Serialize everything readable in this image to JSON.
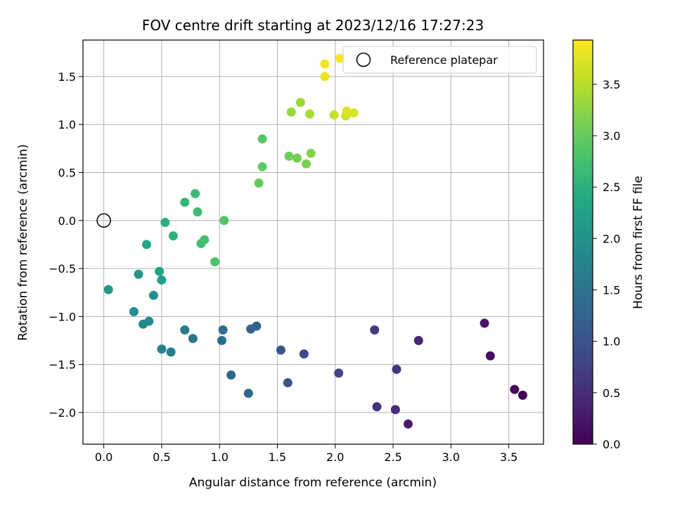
{
  "chart_data": {
    "type": "scatter",
    "title": "FOV centre drift starting at 2023/12/16 17:27:23",
    "xlabel": "Angular distance from reference (arcmin)",
    "ylabel": "Rotation from reference (arcmin)",
    "xlim": [
      -0.18,
      3.8
    ],
    "ylim": [
      -2.33,
      1.88
    ],
    "xticks": [
      0.0,
      0.5,
      1.0,
      1.5,
      2.0,
      2.5,
      3.0,
      3.5
    ],
    "xtick_labels": [
      "0.0",
      "0.5",
      "1.0",
      "1.5",
      "2.0",
      "2.5",
      "3.0",
      "3.5"
    ],
    "yticks": [
      -2.0,
      -1.5,
      -1.0,
      -0.5,
      0.0,
      0.5,
      1.0,
      1.5
    ],
    "ytick_labels": [
      "−2.0",
      "−1.5",
      "−1.0",
      "−0.5",
      "0.0",
      "0.5",
      "1.0",
      "1.5"
    ],
    "grid": true,
    "legend": {
      "label": "Reference platepar",
      "position": "top-right"
    },
    "reference_point": {
      "x": 0.0,
      "y": 0.0
    },
    "colorbar": {
      "label": "Hours from first FF file",
      "colormap": "viridis",
      "range": [
        0.0,
        3.93
      ],
      "ticks": [
        0.0,
        0.5,
        1.0,
        1.5,
        2.0,
        2.5,
        3.0,
        3.5
      ],
      "tick_labels": [
        "0.0",
        "0.5",
        "1.0",
        "1.5",
        "2.0",
        "2.5",
        "3.0",
        "3.5"
      ]
    },
    "points": [
      {
        "x": 3.62,
        "y": -1.82,
        "hours": 0.02
      },
      {
        "x": 3.55,
        "y": -1.76,
        "hours": 0.1
      },
      {
        "x": 3.34,
        "y": -1.41,
        "hours": 0.15
      },
      {
        "x": 3.29,
        "y": -1.07,
        "hours": 0.2
      },
      {
        "x": 2.63,
        "y": -2.12,
        "hours": 0.3
      },
      {
        "x": 2.72,
        "y": -1.25,
        "hours": 0.4
      },
      {
        "x": 2.52,
        "y": -1.97,
        "hours": 0.45
      },
      {
        "x": 2.36,
        "y": -1.94,
        "hours": 0.55
      },
      {
        "x": 2.53,
        "y": -1.55,
        "hours": 0.6
      },
      {
        "x": 2.34,
        "y": -1.14,
        "hours": 0.65
      },
      {
        "x": 2.03,
        "y": -1.59,
        "hours": 0.8
      },
      {
        "x": 1.73,
        "y": -1.39,
        "hours": 0.9
      },
      {
        "x": 1.59,
        "y": -1.69,
        "hours": 1.0
      },
      {
        "x": 1.53,
        "y": -1.35,
        "hours": 1.05
      },
      {
        "x": 1.32,
        "y": -1.1,
        "hours": 1.2
      },
      {
        "x": 1.27,
        "y": -1.13,
        "hours": 1.25
      },
      {
        "x": 1.1,
        "y": -1.61,
        "hours": 1.3
      },
      {
        "x": 1.25,
        "y": -1.8,
        "hours": 1.35
      },
      {
        "x": 1.03,
        "y": -1.14,
        "hours": 1.4
      },
      {
        "x": 1.02,
        "y": -1.25,
        "hours": 1.45
      },
      {
        "x": 0.77,
        "y": -1.23,
        "hours": 1.55
      },
      {
        "x": 0.7,
        "y": -1.14,
        "hours": 1.6
      },
      {
        "x": 0.58,
        "y": -1.37,
        "hours": 1.7
      },
      {
        "x": 0.5,
        "y": -1.34,
        "hours": 1.75
      },
      {
        "x": 0.34,
        "y": -1.08,
        "hours": 1.8
      },
      {
        "x": 0.39,
        "y": -1.05,
        "hours": 1.85
      },
      {
        "x": 0.43,
        "y": -0.78,
        "hours": 1.95
      },
      {
        "x": 0.26,
        "y": -0.95,
        "hours": 1.9
      },
      {
        "x": 0.3,
        "y": -0.56,
        "hours": 2.05
      },
      {
        "x": 0.04,
        "y": -0.72,
        "hours": 2.1
      },
      {
        "x": 0.5,
        "y": -0.62,
        "hours": 2.2
      },
      {
        "x": 0.48,
        "y": -0.53,
        "hours": 2.3
      },
      {
        "x": 0.37,
        "y": -0.25,
        "hours": 2.35
      },
      {
        "x": 0.53,
        "y": -0.02,
        "hours": 2.45
      },
      {
        "x": 0.6,
        "y": -0.16,
        "hours": 2.5
      },
      {
        "x": 0.7,
        "y": 0.19,
        "hours": 2.6
      },
      {
        "x": 0.79,
        "y": 0.28,
        "hours": 2.65
      },
      {
        "x": 0.81,
        "y": 0.09,
        "hours": 2.7
      },
      {
        "x": 0.84,
        "y": -0.24,
        "hours": 2.7
      },
      {
        "x": 0.87,
        "y": -0.2,
        "hours": 2.75
      },
      {
        "x": 0.96,
        "y": -0.43,
        "hours": 2.8
      },
      {
        "x": 1.04,
        "y": 0.0,
        "hours": 2.85
      },
      {
        "x": 1.34,
        "y": 0.39,
        "hours": 3.0
      },
      {
        "x": 1.37,
        "y": 0.56,
        "hours": 2.95
      },
      {
        "x": 1.37,
        "y": 0.85,
        "hours": 2.9
      },
      {
        "x": 1.6,
        "y": 0.67,
        "hours": 3.05
      },
      {
        "x": 1.67,
        "y": 0.65,
        "hours": 3.1
      },
      {
        "x": 1.75,
        "y": 0.59,
        "hours": 3.15
      },
      {
        "x": 1.79,
        "y": 0.7,
        "hours": 3.2
      },
      {
        "x": 1.62,
        "y": 1.13,
        "hours": 3.3
      },
      {
        "x": 1.7,
        "y": 1.23,
        "hours": 3.35
      },
      {
        "x": 1.78,
        "y": 1.11,
        "hours": 3.4
      },
      {
        "x": 1.99,
        "y": 1.1,
        "hours": 3.6
      },
      {
        "x": 2.09,
        "y": 1.09,
        "hours": 3.65
      },
      {
        "x": 2.16,
        "y": 1.12,
        "hours": 3.7
      },
      {
        "x": 2.1,
        "y": 1.14,
        "hours": 3.75
      },
      {
        "x": 1.91,
        "y": 1.5,
        "hours": 3.8
      },
      {
        "x": 1.91,
        "y": 1.63,
        "hours": 3.85
      },
      {
        "x": 2.04,
        "y": 1.69,
        "hours": 3.9
      }
    ]
  }
}
